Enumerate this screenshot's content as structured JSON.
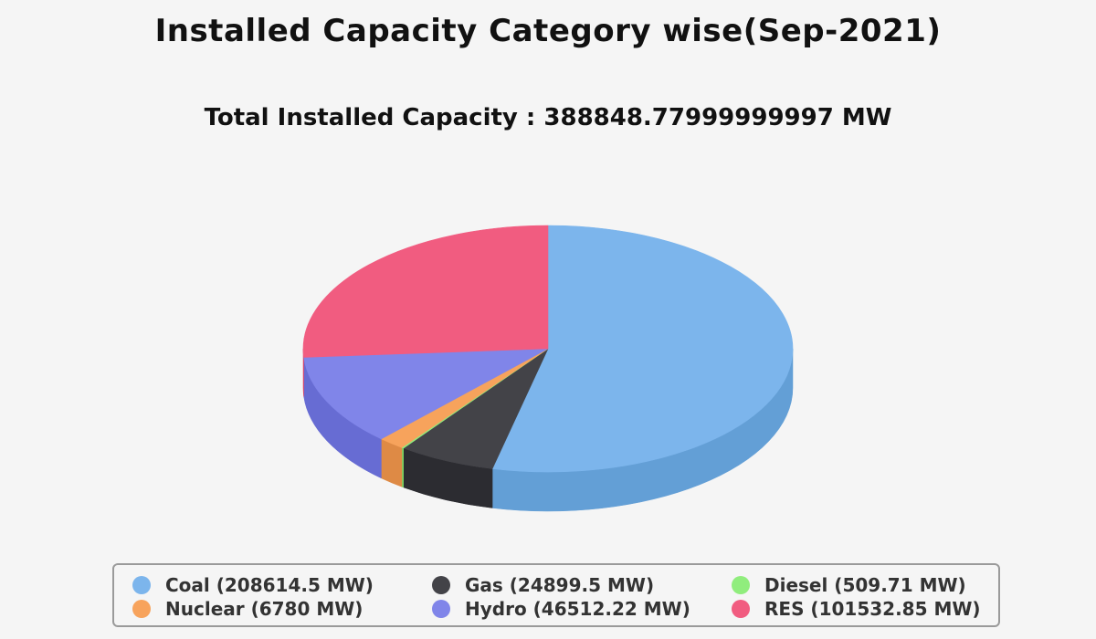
{
  "title": "Installed Capacity Category wise(Sep-2021)",
  "subtitle": "Total Installed Capacity : 388848.77999999997 MW",
  "chart_data": {
    "type": "pie",
    "style": "3d",
    "title": "Installed Capacity Category wise(Sep-2021)",
    "subtitle": "Total Installed Capacity : 388848.77999999997 MW",
    "unit": "MW",
    "total": 388848.77999999997,
    "legend_position": "bottom",
    "slices": [
      {
        "label": "Coal",
        "value": 208614.5,
        "color": "#7cb5ec",
        "side_color": "#639fd6",
        "legend": "Coal (208614.5 MW)"
      },
      {
        "label": "Gas",
        "value": 24899.5,
        "color": "#434348",
        "side_color": "#2c2c31",
        "legend": "Gas (24899.5 MW)"
      },
      {
        "label": "Diesel",
        "value": 509.71,
        "color": "#90ed7d",
        "side_color": "#76d263",
        "legend": "Diesel (509.71 MW)"
      },
      {
        "label": "Nuclear",
        "value": 6780,
        "color": "#f7a35c",
        "side_color": "#de8a45",
        "legend": "Nuclear (6780 MW)"
      },
      {
        "label": "Hydro",
        "value": 46512.22,
        "color": "#8085e9",
        "side_color": "#676cd3",
        "legend": "Hydro (46512.22 MW)"
      },
      {
        "label": "RES",
        "value": 101532.85,
        "color": "#f15c80",
        "side_color": "#d84468",
        "legend": "RES (101532.85 MW)"
      }
    ]
  }
}
